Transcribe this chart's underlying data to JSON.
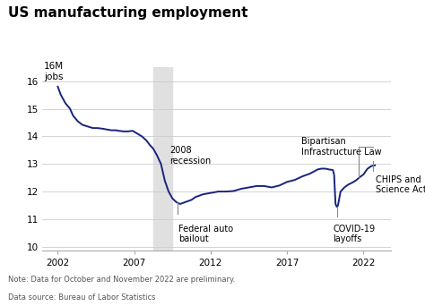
{
  "title": "US manufacturing employment",
  "ylabel_top": "16M\njobs",
  "note": "Note: Data for October and November 2022 are preliminary.",
  "source": "Data source: Bureau of Labor Statistics",
  "line_color": "#1a237e",
  "recession_color": "#e0e0e0",
  "recession_start": 2008.25,
  "recession_end": 2009.5,
  "annotation_line_color": "#888888",
  "xlim": [
    2001.0,
    2023.8
  ],
  "ylim": [
    9.85,
    16.5
  ],
  "yticks": [
    10,
    11,
    12,
    13,
    14,
    15,
    16
  ],
  "xticks": [
    2002,
    2007,
    2012,
    2017,
    2022
  ],
  "data": [
    [
      2002.0,
      15.8
    ],
    [
      2002.2,
      15.5
    ],
    [
      2002.5,
      15.2
    ],
    [
      2002.8,
      15.0
    ],
    [
      2003.0,
      14.75
    ],
    [
      2003.3,
      14.55
    ],
    [
      2003.6,
      14.42
    ],
    [
      2004.0,
      14.35
    ],
    [
      2004.3,
      14.3
    ],
    [
      2004.6,
      14.3
    ],
    [
      2004.9,
      14.28
    ],
    [
      2005.2,
      14.25
    ],
    [
      2005.5,
      14.22
    ],
    [
      2005.8,
      14.22
    ],
    [
      2006.0,
      14.2
    ],
    [
      2006.3,
      14.18
    ],
    [
      2006.6,
      14.18
    ],
    [
      2006.9,
      14.2
    ],
    [
      2007.2,
      14.1
    ],
    [
      2007.5,
      14.0
    ],
    [
      2007.8,
      13.85
    ],
    [
      2008.0,
      13.7
    ],
    [
      2008.25,
      13.55
    ],
    [
      2008.5,
      13.3
    ],
    [
      2008.75,
      13.0
    ],
    [
      2009.0,
      12.4
    ],
    [
      2009.25,
      12.0
    ],
    [
      2009.5,
      11.75
    ],
    [
      2009.75,
      11.62
    ],
    [
      2010.0,
      11.55
    ],
    [
      2010.25,
      11.6
    ],
    [
      2010.5,
      11.65
    ],
    [
      2010.75,
      11.7
    ],
    [
      2011.0,
      11.8
    ],
    [
      2011.5,
      11.9
    ],
    [
      2012.0,
      11.95
    ],
    [
      2012.5,
      12.0
    ],
    [
      2013.0,
      12.0
    ],
    [
      2013.5,
      12.02
    ],
    [
      2014.0,
      12.1
    ],
    [
      2014.5,
      12.15
    ],
    [
      2015.0,
      12.2
    ],
    [
      2015.5,
      12.2
    ],
    [
      2016.0,
      12.15
    ],
    [
      2016.5,
      12.22
    ],
    [
      2017.0,
      12.35
    ],
    [
      2017.5,
      12.42
    ],
    [
      2018.0,
      12.55
    ],
    [
      2018.5,
      12.65
    ],
    [
      2019.0,
      12.8
    ],
    [
      2019.25,
      12.83
    ],
    [
      2019.5,
      12.83
    ],
    [
      2019.75,
      12.8
    ],
    [
      2020.0,
      12.78
    ],
    [
      2020.08,
      12.6
    ],
    [
      2020.17,
      11.55
    ],
    [
      2020.25,
      11.45
    ],
    [
      2020.33,
      11.5
    ],
    [
      2020.5,
      12.0
    ],
    [
      2020.75,
      12.15
    ],
    [
      2021.0,
      12.25
    ],
    [
      2021.25,
      12.32
    ],
    [
      2021.5,
      12.4
    ],
    [
      2021.75,
      12.52
    ],
    [
      2022.0,
      12.62
    ],
    [
      2022.25,
      12.82
    ],
    [
      2022.5,
      12.92
    ],
    [
      2022.75,
      12.95
    ]
  ]
}
